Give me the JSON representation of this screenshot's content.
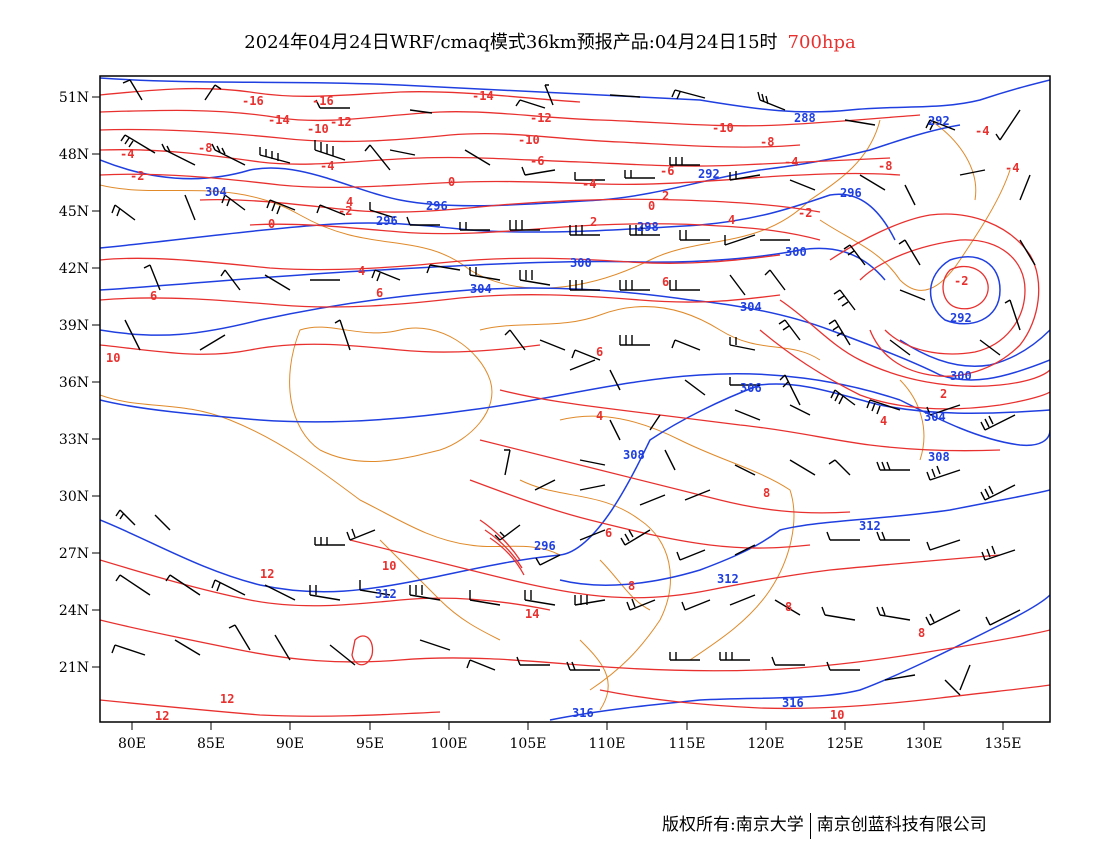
{
  "title": {
    "main": "2024年04月24日WRF/cmaq模式36km预报产品:04月24日15时",
    "level": "700hpa"
  },
  "colors": {
    "geopotential": "#1f3fe0",
    "temperature": "#e8312f",
    "borders": "#e08a2a",
    "frame": "#000000"
  },
  "axes": {
    "lon_ticks": [
      "80E",
      "85E",
      "90E",
      "95E",
      "100E",
      "105E",
      "110E",
      "115E",
      "120E",
      "125E",
      "130E",
      "135E"
    ],
    "lat_ticks": [
      "51N",
      "48N",
      "45N",
      "42N",
      "39N",
      "36N",
      "33N",
      "30N",
      "27N",
      "24N",
      "21N"
    ]
  },
  "geopotential_labels": [
    "288",
    "292",
    "292",
    "296",
    "296",
    "298",
    "300",
    "300",
    "300",
    "304",
    "304",
    "304",
    "304",
    "306",
    "308",
    "308",
    "312",
    "312",
    "312",
    "316",
    "316",
    "292",
    "296",
    "296"
  ],
  "temperature_labels": [
    "-16",
    "-16",
    "-14",
    "-14",
    "-12",
    "-12",
    "-10",
    "-10",
    "-10",
    "-8",
    "-8",
    "-8",
    "-6",
    "-6",
    "-4",
    "-4",
    "-4",
    "-4",
    "-4",
    "-4",
    "-2",
    "-2",
    "-2",
    "-2",
    "0",
    "0",
    "0",
    "2",
    "2",
    "2",
    "4",
    "4",
    "4",
    "4",
    "4",
    "6",
    "6",
    "6",
    "6",
    "6",
    "8",
    "8",
    "8",
    "8",
    "10",
    "10",
    "10",
    "12",
    "12",
    "12",
    "14"
  ],
  "footer": {
    "left": "版权所有:南京大学",
    "right": "南京创蓝科技有限公司"
  }
}
